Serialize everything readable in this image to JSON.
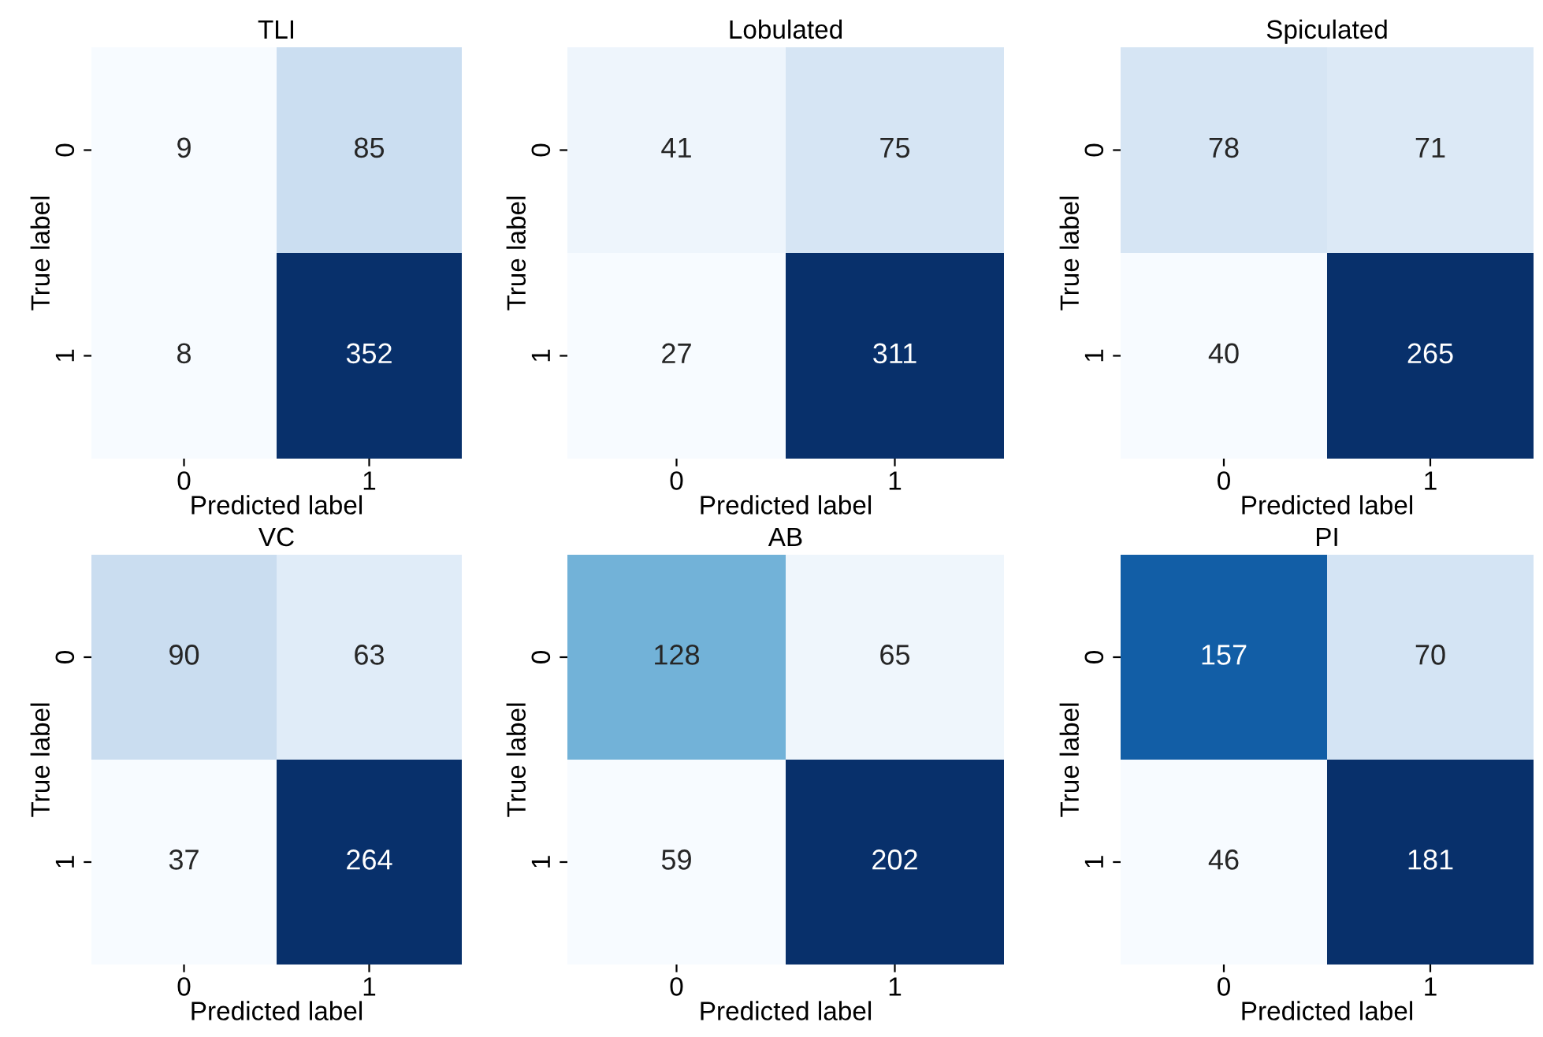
{
  "chart_data": [
    {
      "type": "heatmap",
      "title": "TLI",
      "xlabel": "Predicted label",
      "ylabel": "True label",
      "categories": [
        "0",
        "1"
      ],
      "y_categories": [
        "0",
        "1"
      ],
      "cells": [
        [
          9,
          85
        ],
        [
          8,
          352
        ]
      ],
      "data_labels": true
    },
    {
      "type": "heatmap",
      "title": "Lobulated",
      "xlabel": "Predicted label",
      "ylabel": "True label",
      "categories": [
        "0",
        "1"
      ],
      "y_categories": [
        "0",
        "1"
      ],
      "cells": [
        [
          41,
          75
        ],
        [
          27,
          311
        ]
      ],
      "data_labels": true
    },
    {
      "type": "heatmap",
      "title": "Spiculated",
      "xlabel": "Predicted label",
      "ylabel": "True label",
      "categories": [
        "0",
        "1"
      ],
      "y_categories": [
        "0",
        "1"
      ],
      "cells": [
        [
          78,
          71
        ],
        [
          40,
          265
        ]
      ],
      "data_labels": true
    },
    {
      "type": "heatmap",
      "title": "VC",
      "xlabel": "Predicted label",
      "ylabel": "True label",
      "categories": [
        "0",
        "1"
      ],
      "y_categories": [
        "0",
        "1"
      ],
      "cells": [
        [
          90,
          63
        ],
        [
          37,
          264
        ]
      ],
      "data_labels": true
    },
    {
      "type": "heatmap",
      "title": "AB",
      "xlabel": "Predicted label",
      "ylabel": "True label",
      "categories": [
        "0",
        "1"
      ],
      "y_categories": [
        "0",
        "1"
      ],
      "cells": [
        [
          128,
          65
        ],
        [
          59,
          202
        ]
      ],
      "data_labels": true
    },
    {
      "type": "heatmap",
      "title": "PI",
      "xlabel": "Predicted label",
      "ylabel": "True label",
      "categories": [
        "0",
        "1"
      ],
      "y_categories": [
        "0",
        "1"
      ],
      "cells": [
        [
          157,
          70
        ],
        [
          46,
          181
        ]
      ],
      "data_labels": true
    }
  ]
}
